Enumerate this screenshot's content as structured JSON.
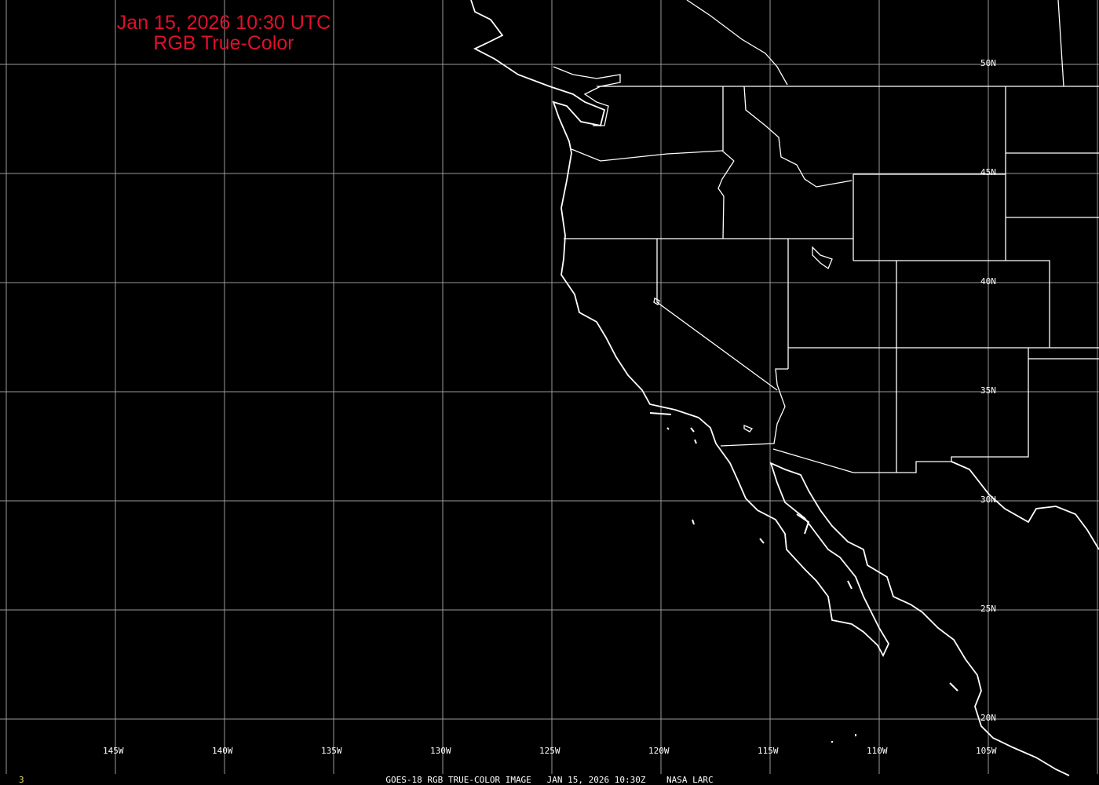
{
  "title": {
    "line1": "Jan 15, 2026 10:30 UTC",
    "line2": "RGB True-Color",
    "color": "#e0102c"
  },
  "caption": "GOES-18 RGB TRUE-COLOR IMAGE   JAN 15, 2026 10:30Z    NASA LARC",
  "frame_number": "3",
  "grid": {
    "longitudes": [
      {
        "value": -145,
        "label": "145W"
      },
      {
        "value": -140,
        "label": "140W"
      },
      {
        "value": -135,
        "label": "135W"
      },
      {
        "value": -130,
        "label": "130W"
      },
      {
        "value": -125,
        "label": "125W"
      },
      {
        "value": -120,
        "label": "120W"
      },
      {
        "value": -115,
        "label": "115W"
      },
      {
        "value": -110,
        "label": "110W"
      },
      {
        "value": -105,
        "label": "105W"
      }
    ],
    "latitudes": [
      {
        "value": 50,
        "label": "50N"
      },
      {
        "value": 45,
        "label": "45N"
      },
      {
        "value": 40,
        "label": "40N"
      },
      {
        "value": 35,
        "label": "35N"
      },
      {
        "value": 30,
        "label": "30N"
      },
      {
        "value": 25,
        "label": "25N"
      },
      {
        "value": 20,
        "label": "20N"
      }
    ],
    "color": "#9a9a9a"
  },
  "map_colors": {
    "background": "#000000",
    "outlines": "#ffffff"
  }
}
